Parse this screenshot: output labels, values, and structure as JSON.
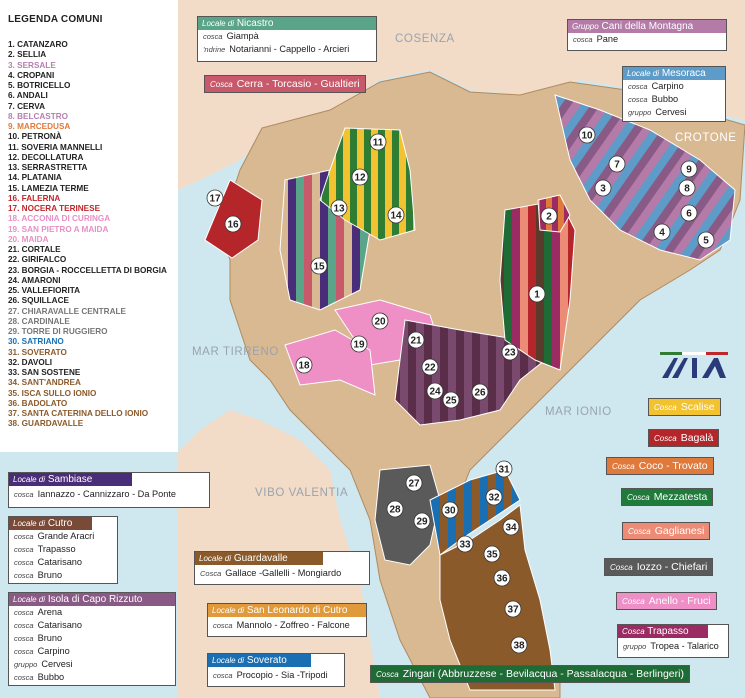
{
  "colors": {
    "sea": "#cfe8f0",
    "land": "#d9b991",
    "mainland": "#f2dcc8",
    "text_dark": "#222222"
  },
  "legend": {
    "title": "LEGENDA COMUNI",
    "items": [
      {
        "label": "1. CATANZARO",
        "color": "#222222"
      },
      {
        "label": "2. SELLIA",
        "color": "#222222"
      },
      {
        "label": "3. SERSALE",
        "color": "#b57fb0"
      },
      {
        "label": "4. CROPANI",
        "color": "#222222"
      },
      {
        "label": "5. BOTRICELLO",
        "color": "#222222"
      },
      {
        "label": "6. ANDALI",
        "color": "#222222"
      },
      {
        "label": "7. CERVA",
        "color": "#222222"
      },
      {
        "label": "8. BELCASTRO",
        "color": "#b57fb0"
      },
      {
        "label": "9. MARCEDUSA",
        "color": "#e07a3a"
      },
      {
        "label": "10. PETRONÀ",
        "color": "#222222"
      },
      {
        "label": "11. SOVERIA MANNELLI",
        "color": "#222222"
      },
      {
        "label": "12. DECOLLATURA",
        "color": "#222222"
      },
      {
        "label": "13. SERRASTRETTA",
        "color": "#222222"
      },
      {
        "label": "14. PLATANIA",
        "color": "#222222"
      },
      {
        "label": "15. LAMEZIA TERME",
        "color": "#222222"
      },
      {
        "label": "16. FALERNA",
        "color": "#c0272d"
      },
      {
        "label": "17. NOCERA TERINESE",
        "color": "#c0272d"
      },
      {
        "label": "18. ACCONIA DI CURINGA",
        "color": "#e88fc5"
      },
      {
        "label": "19. SAN PIETRO A MAIDA",
        "color": "#e88fc5"
      },
      {
        "label": "20. MAIDA",
        "color": "#e88fc5"
      },
      {
        "label": "21. CORTALE",
        "color": "#222222"
      },
      {
        "label": "22. GIRIFALCO",
        "color": "#222222"
      },
      {
        "label": "23. BORGIA - ROCCELLETTA DI BORGIA",
        "color": "#222222"
      },
      {
        "label": "24. AMARONI",
        "color": "#222222"
      },
      {
        "label": "25. VALLEFIORITA",
        "color": "#222222"
      },
      {
        "label": "26. SQUILLACE",
        "color": "#222222"
      },
      {
        "label": "27. CHIARAVALLE CENTRALE",
        "color": "#777777"
      },
      {
        "label": "28. CARDINALE",
        "color": "#777777"
      },
      {
        "label": "29. TORRE DI RUGGIERO",
        "color": "#777777"
      },
      {
        "label": "30. SATRIANO",
        "color": "#1a6fb3"
      },
      {
        "label": "31. SOVERATO",
        "color": "#8a5a2b"
      },
      {
        "label": "32. DAVOLI",
        "color": "#222222"
      },
      {
        "label": "33. SAN SOSTENE",
        "color": "#222222"
      },
      {
        "label": "34. SANT'ANDREA",
        "color": "#8a5a2b"
      },
      {
        "label": "35. ISCA SULLO IONIO",
        "color": "#8a5a2b"
      },
      {
        "label": "36. BADOLATO",
        "color": "#8a5a2b"
      },
      {
        "label": "37. SANTA CATERINA DELLO IONIO",
        "color": "#8a5a2b"
      },
      {
        "label": "38. GUARDAVALLE",
        "color": "#8a5a2b"
      }
    ]
  },
  "geo_labels": {
    "cosenza": "COSENZA",
    "crotone": "CROTONE",
    "mar_tirreno": "MAR TIRRENO",
    "mar_ionio": "MAR IONIO",
    "vibo_valentia": "VIBO VALENTIA"
  },
  "boxes": {
    "nicastro": {
      "header_prefix": "Locale di",
      "header_name": "Nicastro",
      "color": "#5aa58a",
      "rows": [
        {
          "kind": "cosca",
          "text": "Giampà"
        },
        {
          "kind": "'ndrine",
          "text": "Notarianni - Cappello - Arcieri"
        }
      ]
    },
    "cerra": {
      "kind": "Cosca",
      "text": "Cerra - Torcasio - Gualtieri",
      "color": "#c8596a"
    },
    "cani_montagna": {
      "header_prefix": "Gruppo",
      "header_name": "Cani della Montagna",
      "color": "#b47aa8",
      "rows": [
        {
          "kind": "cosca",
          "text": "Pane"
        }
      ]
    },
    "mesoraca": {
      "header_prefix": "Locale di",
      "header_name": "Mesoraca",
      "color": "#5d9cc9",
      "rows": [
        {
          "kind": "cosca",
          "text": "Carpino"
        },
        {
          "kind": "cosca",
          "text": "Bubbo"
        },
        {
          "kind": "gruppo",
          "text": "Cervesi"
        }
      ]
    },
    "sambiase": {
      "header_prefix": "Locale di",
      "header_name": "Sambiase",
      "color": "#4a2d78",
      "rows": [
        {
          "kind": "cosca",
          "text": "Iannazzo - Cannizzaro - Da Ponte"
        }
      ]
    },
    "cutro": {
      "header_prefix": "Locale di",
      "header_name": "Cutro",
      "color": "#7a4a38",
      "rows": [
        {
          "kind": "cosca",
          "text": "Grande Aracri"
        },
        {
          "kind": "cosca",
          "text": "Trapasso"
        },
        {
          "kind": "cosca",
          "text": "Catarisano"
        },
        {
          "kind": "cosca",
          "text": "Bruno"
        }
      ]
    },
    "isola": {
      "header_prefix": "Locale di",
      "header_name": "Isola di Capo Rizzuto",
      "color": "#8a5a86",
      "rows": [
        {
          "kind": "cosca",
          "text": "Arena"
        },
        {
          "kind": "cosca",
          "text": "Catarisano"
        },
        {
          "kind": "cosca",
          "text": "Bruno"
        },
        {
          "kind": "cosca",
          "text": "Carpino"
        },
        {
          "kind": "gruppo",
          "text": "Cervesi"
        },
        {
          "kind": "cosca",
          "text": "Bubbo"
        }
      ]
    },
    "guardavalle": {
      "header_prefix": "Locale di",
      "header_name": "Guardavalle",
      "color": "#8a5a2b",
      "rows": [
        {
          "kind": "Cosca",
          "text": "Gallace -Gallelli - Mongiardo"
        }
      ]
    },
    "san_leonardo": {
      "header_prefix": "Locale di",
      "header_name": "San Leonardo di Cutro",
      "color": "#e09a3c",
      "rows": [
        {
          "kind": "cosca",
          "text": "Mannolo - Zoffreo - Falcone"
        }
      ]
    },
    "soverato": {
      "header_prefix": "Locale di",
      "header_name": "Soverato",
      "color": "#1a6fb3",
      "rows": [
        {
          "kind": "cosca",
          "text": "Procopio - Sia -Tripodi"
        }
      ]
    },
    "trapasso": {
      "header_prefix": "Cosca",
      "header_name": "Trapasso",
      "color": "#9a2c63",
      "rows": [
        {
          "kind": "gruppo",
          "text": "Tropea - Talarico"
        }
      ]
    }
  },
  "tags": {
    "scalise": {
      "kind": "Cosca",
      "text": "Scalise",
      "color": "#f2c230"
    },
    "bagala": {
      "kind": "Cosca",
      "text": "Bagalà",
      "color": "#b5262b"
    },
    "coco": {
      "kind": "Cosca",
      "text": "Coco - Trovato",
      "color": "#e07a3a"
    },
    "mezzatesta": {
      "kind": "Cosca",
      "text": "Mezzatesta",
      "color": "#1f7a3c"
    },
    "gaglianesi": {
      "kind": "Cosca",
      "text": "Gaglianesi",
      "color": "#ec8c77"
    },
    "iozzo": {
      "kind": "Cosca",
      "text": "Iozzo - Chiefari",
      "color": "#5a5a5a"
    },
    "anello": {
      "kind": "Cosca",
      "text": "Anello - Fruci",
      "color": "#ee8fc8"
    },
    "zingari": {
      "kind": "Cosca",
      "text": "Zingari (Abbruzzese - Bevilacqua - Passalacqua - Berlingeri)",
      "color": "#1f6b35"
    }
  },
  "municipality_numbers": [
    "1",
    "2",
    "3",
    "4",
    "5",
    "6",
    "7",
    "8",
    "9",
    "10",
    "11",
    "12",
    "13",
    "14",
    "15",
    "16",
    "17",
    "18",
    "19",
    "20",
    "21",
    "22",
    "23",
    "24",
    "25",
    "26",
    "27",
    "28",
    "29",
    "30",
    "31",
    "32",
    "33",
    "34",
    "35",
    "36",
    "37",
    "38"
  ],
  "logo_text": "DIA"
}
